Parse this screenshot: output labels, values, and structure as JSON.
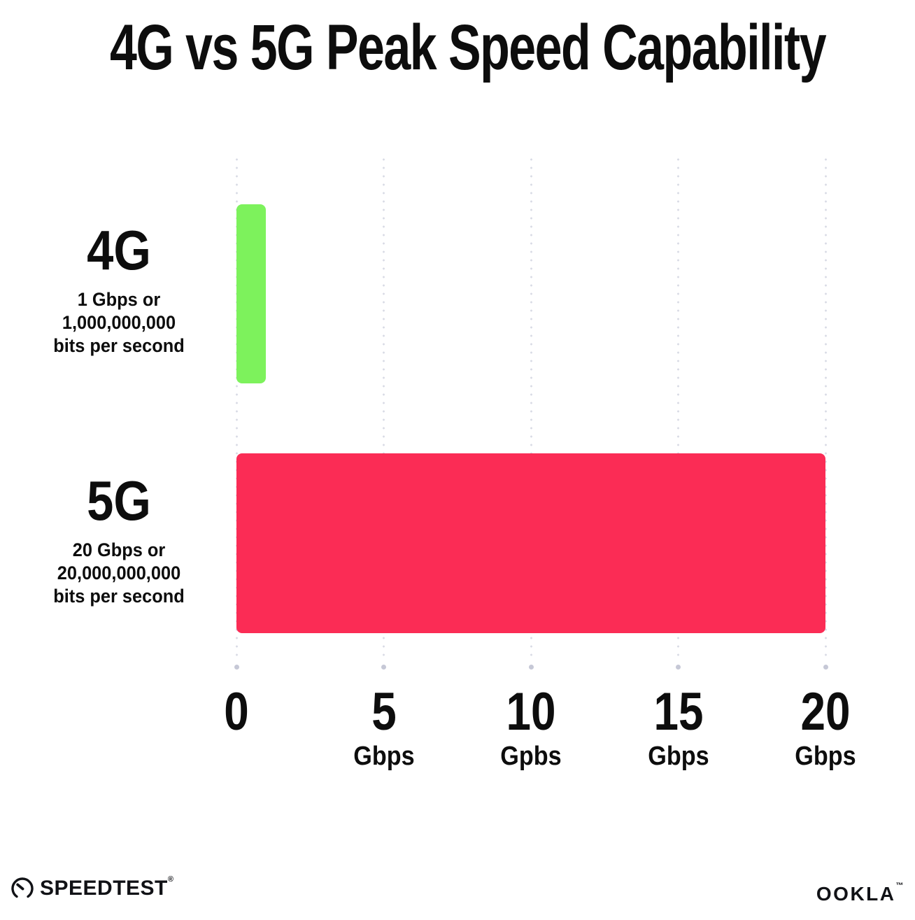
{
  "title": "4G vs 5G Peak Speed Capability",
  "chart_data": {
    "type": "bar",
    "orientation": "horizontal",
    "title": "4G vs 5G Peak Speed Capability",
    "categories": [
      "4G",
      "5G"
    ],
    "values": [
      1,
      20
    ],
    "value_unit": "Gbps",
    "bar_colors": [
      "#7df25c",
      "#fb2c55"
    ],
    "xlim": [
      0,
      20
    ],
    "x_ticks": [
      {
        "value": "0",
        "unit": ""
      },
      {
        "value": "5",
        "unit": "Gbps"
      },
      {
        "value": "10",
        "unit": "Gpbs"
      },
      {
        "value": "15",
        "unit": "Gbps"
      },
      {
        "value": "20",
        "unit": "Gbps"
      }
    ],
    "grid": "vertical dotted",
    "legend": "none",
    "annotations": [
      "4G: 1 Gbps or 1,000,000,000 bits per second",
      "5G: 20 Gbps or 20,000,000,000 bits per second"
    ]
  },
  "rows": [
    {
      "label": "4G",
      "sub1": "1 Gbps or",
      "sub2": "1,000,000,000",
      "sub3": "bits per second"
    },
    {
      "label": "5G",
      "sub1": "20 Gbps or",
      "sub2": "20,000,000,000",
      "sub3": "bits per second"
    }
  ],
  "footer": {
    "speedtest_label": "SPEEDTEST",
    "speedtest_mark": "®",
    "ookla_label": "OOKLA",
    "ookla_mark": "™"
  },
  "colors": {
    "bar_4g": "#7df25c",
    "bar_5g": "#fb2c55",
    "text": "#0d0d0d",
    "gridline": "#d9dbe5"
  }
}
